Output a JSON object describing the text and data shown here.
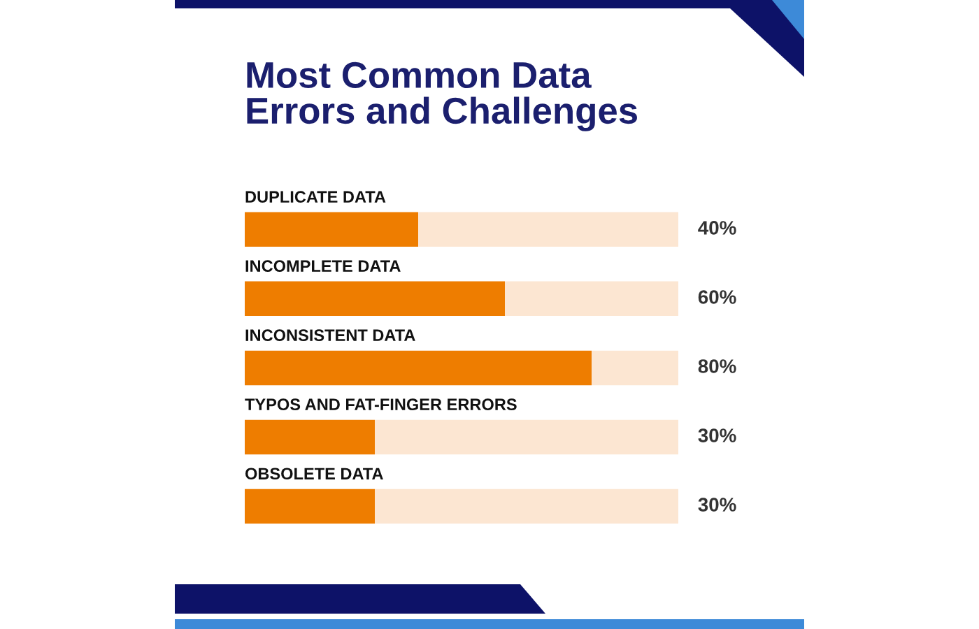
{
  "chart_data": {
    "type": "bar",
    "orientation": "horizontal",
    "stacked": true,
    "title": "Most Common Data Errors and Challenges",
    "categories": [
      "DUPLICATE DATA",
      "INCOMPLETE DATA",
      "INCONSISTENT DATA",
      "TYPOS AND FAT-FINGER ERRORS",
      "OBSOLETE DATA"
    ],
    "series": [
      {
        "color": "#ee7d00",
        "values": [
          40,
          60,
          80,
          30,
          30
        ],
        "value_labels": [
          "40%",
          "60%",
          "80%",
          "30%",
          "30%"
        ]
      },
      {
        "color": "#fce6d2",
        "values": [
          60,
          40,
          20,
          70,
          70
        ]
      }
    ],
    "xlim": [
      0,
      100
    ]
  }
}
